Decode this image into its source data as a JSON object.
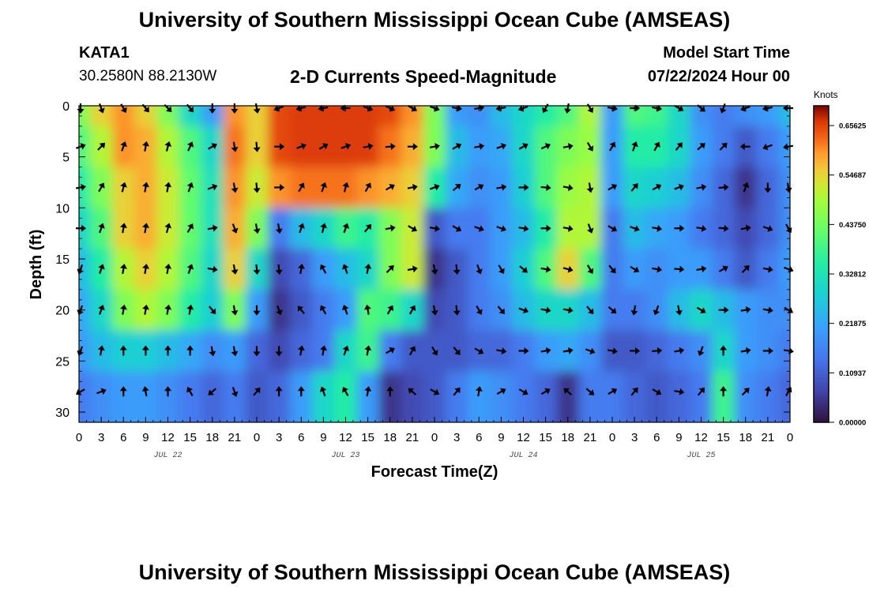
{
  "page": {
    "title": "University of Southern Mississippi Ocean Cube (AMSEAS)",
    "title_repeat": "University of Southern Mississippi Ocean Cube (AMSEAS)",
    "station": "KATA1",
    "coordinates": "30.2580N  88.2130W",
    "subtitle": "2-D Currents Speed-Magnitude",
    "model_start_label": "Model Start Time",
    "model_start_value": "07/22/2024 Hour 00"
  },
  "chart_data": {
    "type": "heatmap",
    "title": "2-D Currents Speed-Magnitude",
    "xlabel": "Forecast Time(Z)",
    "ylabel": "Depth (ft)",
    "xlim": [
      0,
      96
    ],
    "ylim": [
      0,
      31
    ],
    "x_ticks": [
      0,
      3,
      6,
      9,
      12,
      15,
      18,
      21,
      24,
      27,
      30,
      33,
      36,
      39,
      42,
      45,
      48,
      51,
      54,
      57,
      60,
      63,
      66,
      69,
      72,
      75,
      78,
      81,
      84,
      87,
      90,
      93,
      96
    ],
    "x_tick_labels": [
      "0",
      "3",
      "6",
      "9",
      "12",
      "15",
      "18",
      "21",
      "0",
      "3",
      "6",
      "9",
      "12",
      "15",
      "18",
      "21",
      "0",
      "3",
      "6",
      "9",
      "12",
      "15",
      "18",
      "21",
      "0",
      "3",
      "6",
      "9",
      "12",
      "15",
      "18",
      "21",
      "0"
    ],
    "day_labels": [
      {
        "text": "JUL 22",
        "hour": 12
      },
      {
        "text": "JUL 23",
        "hour": 36
      },
      {
        "text": "JUL 24",
        "hour": 60
      },
      {
        "text": "JUL 25",
        "hour": 84
      }
    ],
    "y_ticks": [
      0,
      5,
      10,
      15,
      20,
      25,
      30
    ],
    "colorbar": {
      "label": "Knots",
      "min": 0.0,
      "max": 0.7,
      "ticks": [
        0.65625,
        0.54687,
        0.4375,
        0.32812,
        0.21875,
        0.10937,
        0.0
      ],
      "tick_labels": [
        "0.65625",
        "0.54687",
        "0.43750",
        "0.32812",
        "0.21875",
        "0.10937",
        "0.00000"
      ]
    },
    "depth_levels": [
      0,
      4,
      8,
      12,
      16,
      20,
      24,
      28
    ],
    "arrow_hours": [
      0,
      3,
      6,
      9,
      12,
      15,
      18,
      21,
      24,
      27,
      30,
      33,
      36,
      39,
      42,
      45,
      48,
      51,
      54,
      57,
      60,
      63,
      66,
      69,
      72,
      75,
      78,
      81,
      84,
      87,
      90,
      93,
      96
    ],
    "speed_knots": [
      [
        0.45,
        0.55,
        0.6,
        0.55,
        0.45,
        0.3,
        0.2,
        0.6,
        0.55,
        0.65,
        0.66,
        0.66,
        0.66,
        0.66,
        0.65,
        0.6,
        0.45,
        0.2,
        0.18,
        0.25,
        0.3,
        0.35,
        0.4,
        0.5,
        0.2,
        0.4,
        0.38,
        0.3,
        0.18,
        0.15,
        0.18,
        0.2,
        0.25
      ],
      [
        0.4,
        0.5,
        0.6,
        0.58,
        0.5,
        0.4,
        0.3,
        0.62,
        0.55,
        0.65,
        0.66,
        0.66,
        0.66,
        0.66,
        0.62,
        0.58,
        0.45,
        0.25,
        0.2,
        0.22,
        0.3,
        0.4,
        0.45,
        0.48,
        0.2,
        0.35,
        0.35,
        0.3,
        0.2,
        0.15,
        0.1,
        0.15,
        0.2
      ],
      [
        0.35,
        0.45,
        0.55,
        0.58,
        0.52,
        0.42,
        0.32,
        0.6,
        0.52,
        0.6,
        0.62,
        0.62,
        0.62,
        0.6,
        0.58,
        0.55,
        0.35,
        0.22,
        0.18,
        0.2,
        0.28,
        0.4,
        0.48,
        0.5,
        0.2,
        0.3,
        0.28,
        0.25,
        0.18,
        0.12,
        0.05,
        0.12,
        0.18
      ],
      [
        0.3,
        0.4,
        0.55,
        0.58,
        0.52,
        0.42,
        0.32,
        0.58,
        0.45,
        0.15,
        0.25,
        0.3,
        0.38,
        0.35,
        0.45,
        0.52,
        0.1,
        0.15,
        0.15,
        0.2,
        0.25,
        0.35,
        0.5,
        0.5,
        0.15,
        0.25,
        0.22,
        0.2,
        0.15,
        0.12,
        0.08,
        0.12,
        0.18
      ],
      [
        0.25,
        0.35,
        0.5,
        0.55,
        0.5,
        0.4,
        0.3,
        0.55,
        0.3,
        0.08,
        0.12,
        0.2,
        0.25,
        0.3,
        0.45,
        0.52,
        0.05,
        0.1,
        0.15,
        0.2,
        0.28,
        0.4,
        0.55,
        0.4,
        0.15,
        0.2,
        0.18,
        0.2,
        0.2,
        0.15,
        0.1,
        0.15,
        0.2
      ],
      [
        0.22,
        0.3,
        0.45,
        0.5,
        0.45,
        0.35,
        0.28,
        0.45,
        0.2,
        0.05,
        0.1,
        0.15,
        0.2,
        0.4,
        0.38,
        0.3,
        0.08,
        0.1,
        0.15,
        0.18,
        0.25,
        0.3,
        0.3,
        0.25,
        0.15,
        0.15,
        0.18,
        0.25,
        0.3,
        0.25,
        0.2,
        0.18,
        0.18
      ],
      [
        0.2,
        0.25,
        0.28,
        0.28,
        0.25,
        0.22,
        0.18,
        0.2,
        0.12,
        0.08,
        0.12,
        0.15,
        0.3,
        0.38,
        0.15,
        0.1,
        0.1,
        0.1,
        0.12,
        0.12,
        0.15,
        0.2,
        0.22,
        0.18,
        0.1,
        0.1,
        0.12,
        0.15,
        0.18,
        0.3,
        0.2,
        0.18,
        0.15
      ],
      [
        0.15,
        0.18,
        0.2,
        0.2,
        0.18,
        0.15,
        0.12,
        0.15,
        0.1,
        0.12,
        0.2,
        0.3,
        0.35,
        0.2,
        0.05,
        0.08,
        0.1,
        0.15,
        0.2,
        0.18,
        0.15,
        0.12,
        0.05,
        0.15,
        0.15,
        0.12,
        0.1,
        0.12,
        0.15,
        0.38,
        0.18,
        0.15,
        0.12
      ]
    ],
    "direction_deg": [
      [
        180,
        160,
        150,
        140,
        135,
        140,
        180,
        180,
        170,
        250,
        255,
        260,
        270,
        110,
        115,
        120,
        110,
        100,
        80,
        260,
        250,
        210,
        190,
        150,
        100,
        90,
        100,
        120,
        130,
        200,
        250,
        260,
        270
      ],
      [
        70,
        45,
        20,
        10,
        15,
        25,
        60,
        170,
        175,
        90,
        70,
        60,
        70,
        80,
        85,
        90,
        80,
        60,
        80,
        70,
        60,
        65,
        80,
        150,
        30,
        20,
        30,
        40,
        50,
        45,
        270,
        250,
        260
      ],
      [
        80,
        30,
        15,
        10,
        10,
        20,
        70,
        170,
        175,
        90,
        30,
        20,
        15,
        30,
        60,
        80,
        70,
        50,
        60,
        80,
        90,
        95,
        100,
        170,
        60,
        40,
        60,
        70,
        80,
        85,
        20,
        180,
        170
      ],
      [
        90,
        20,
        10,
        10,
        15,
        30,
        80,
        160,
        170,
        170,
        20,
        15,
        20,
        40,
        80,
        120,
        100,
        120,
        110,
        110,
        100,
        90,
        100,
        160,
        120,
        110,
        100,
        90,
        100,
        95,
        80,
        110,
        150
      ],
      [
        200,
        20,
        10,
        10,
        10,
        20,
        100,
        170,
        175,
        175,
        10,
        330,
        340,
        10,
        45,
        80,
        170,
        175,
        160,
        150,
        130,
        100,
        105,
        150,
        140,
        120,
        100,
        95,
        80,
        60,
        45,
        100,
        110
      ],
      [
        200,
        20,
        10,
        10,
        10,
        10,
        140,
        170,
        180,
        160,
        320,
        330,
        340,
        350,
        30,
        30,
        170,
        175,
        150,
        140,
        110,
        100,
        100,
        140,
        130,
        190,
        200,
        170,
        120,
        90,
        80,
        100,
        120
      ],
      [
        200,
        10,
        0,
        0,
        0,
        0,
        170,
        170,
        180,
        180,
        10,
        10,
        20,
        10,
        60,
        30,
        150,
        140,
        120,
        100,
        90,
        80,
        80,
        110,
        100,
        90,
        85,
        80,
        200,
        0,
        80,
        90,
        100
      ],
      [
        240,
        70,
        0,
        350,
        0,
        330,
        230,
        160,
        40,
        0,
        0,
        340,
        330,
        10,
        0,
        310,
        120,
        40,
        10,
        60,
        120,
        60,
        310,
        130,
        60,
        40,
        120,
        100,
        40,
        0,
        45,
        10,
        30
      ]
    ]
  }
}
